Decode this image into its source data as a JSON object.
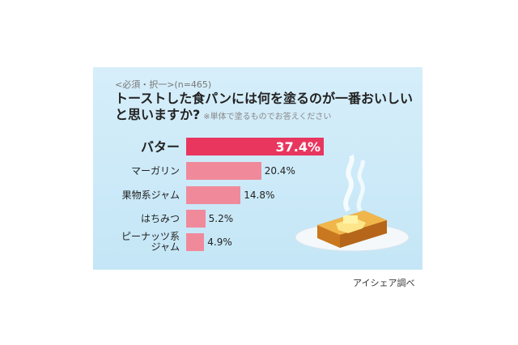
{
  "chart_data": {
    "type": "bar",
    "note": "<必須・択一>(n=465)",
    "title": "トーストした食パンには何を塗るのが一番おいしいと思いますか?",
    "subtitle": "※単体で塗るものでお答えください",
    "categories": [
      "バター",
      "マーガリン",
      "果物系ジャム",
      "はちみつ",
      "ピーナッツ系ジャム"
    ],
    "values": [
      37.4,
      20.4,
      14.8,
      5.2,
      4.9
    ],
    "value_labels": [
      "37.4%",
      "20.4%",
      "14.8%",
      "5.2%",
      "4.9%"
    ],
    "colors": [
      "#e8365f",
      "#f08a9b",
      "#f08a9b",
      "#f08a9b",
      "#f08a9b"
    ],
    "source": "アイシェア調べ"
  }
}
